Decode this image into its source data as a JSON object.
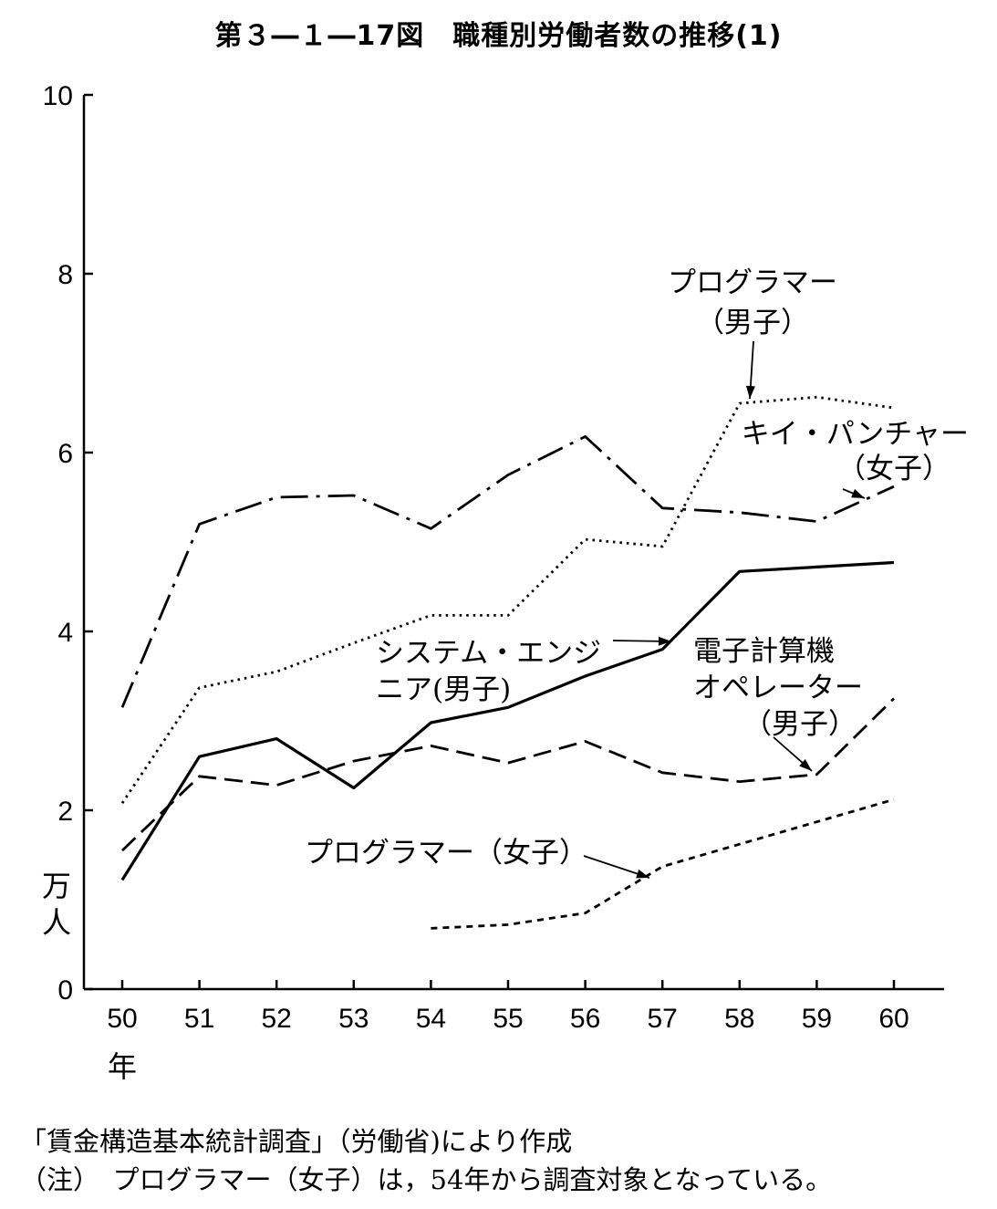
{
  "title": "第３―１―17図　職種別労働者数の推移(1)",
  "chart_data": {
    "type": "line",
    "y_unit_label": "万人",
    "x_unit_label": "年",
    "x": [
      50,
      51,
      52,
      53,
      54,
      55,
      56,
      57,
      58,
      59,
      60
    ],
    "x_tick_labels": [
      "50",
      "51",
      "52",
      "53",
      "54",
      "55",
      "56",
      "57",
      "58",
      "59",
      "60"
    ],
    "ylim": [
      0,
      10
    ],
    "y_ticks": [
      0,
      2,
      4,
      6,
      8,
      10
    ],
    "grid": false,
    "series": [
      {
        "name": "キイ・パンチャー（女子）",
        "style": "dashdot",
        "x": [
          50,
          51,
          52,
          53,
          54,
          55,
          56,
          57,
          58,
          59,
          60
        ],
        "values": [
          3.15,
          5.2,
          5.5,
          5.52,
          5.15,
          5.75,
          6.18,
          5.38,
          5.33,
          5.23,
          5.62
        ]
      },
      {
        "name": "プログラマー（男子）",
        "style": "dotted",
        "x": [
          50,
          51,
          52,
          53,
          54,
          55,
          56,
          57,
          58,
          59,
          60
        ],
        "values": [
          2.08,
          3.37,
          3.55,
          3.87,
          4.18,
          4.18,
          5.03,
          4.95,
          6.55,
          6.62,
          6.5
        ]
      },
      {
        "name": "システム・エンジニア(男子)",
        "style": "solid",
        "x": [
          50,
          51,
          52,
          53,
          54,
          55,
          56,
          57,
          58,
          59,
          60
        ],
        "values": [
          1.22,
          2.6,
          2.8,
          2.25,
          2.98,
          3.15,
          3.5,
          3.8,
          4.67,
          4.72,
          4.77
        ]
      },
      {
        "name": "電子計算機オペレーター（男子）",
        "style": "dashed",
        "x": [
          50,
          51,
          52,
          53,
          54,
          55,
          56,
          57,
          58,
          59,
          60
        ],
        "values": [
          1.55,
          2.38,
          2.28,
          2.55,
          2.72,
          2.53,
          2.77,
          2.42,
          2.32,
          2.4,
          3.25
        ]
      },
      {
        "name": "プログラマー（女子）",
        "style": "short-dashed",
        "x": [
          54,
          55,
          56,
          57,
          58,
          59,
          60
        ],
        "values": [
          0.68,
          0.72,
          0.85,
          1.37,
          1.62,
          1.87,
          2.12
        ]
      }
    ],
    "annotations": [
      {
        "lines": [
          "プログラマー",
          "（男子）"
        ],
        "points_to": "プログラマー（男子）",
        "at_x": 58
      },
      {
        "lines": [
          "キイ・パンチャー",
          "（女子）"
        ],
        "points_to": "キイ・パンチャー（女子）",
        "at_x": 60
      },
      {
        "lines": [
          "システム・エンジ",
          "ニア(男子)"
        ],
        "points_to": "システム・エンジニア(男子)",
        "at_x": 57
      },
      {
        "lines": [
          "電子計算機",
          "オペレーター",
          "（男子）"
        ],
        "points_to": "電子計算機オペレーター（男子）",
        "at_x": 59
      },
      {
        "lines": [
          "プログラマー（女子）"
        ],
        "points_to": "プログラマー（女子）",
        "at_x": 56.8
      }
    ]
  },
  "notes": {
    "source": "「賃金構造基本統計調査」（労働省)により作成",
    "remark": "（注）　プログラマー（女子）は，54年から調査対象となっている。"
  }
}
